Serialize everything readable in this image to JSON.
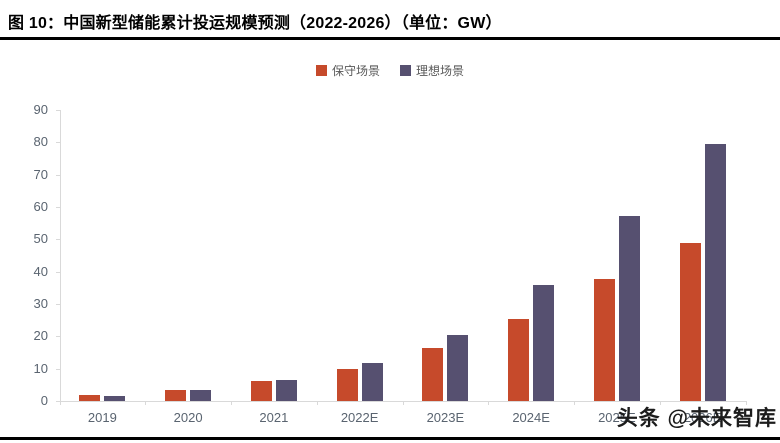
{
  "header": {
    "title": "图 10：中国新型储能累计投运规模预测（2022-2026）（单位：GW）"
  },
  "watermark": {
    "text": "头条 @未来智库"
  },
  "chart_data": {
    "type": "bar",
    "title": "中国新型储能累计投运规模预测（2022-2026）",
    "unit": "GW",
    "categories": [
      "2019",
      "2020",
      "2021",
      "2022E",
      "2023E",
      "2024E",
      "2025E",
      "2026E"
    ],
    "series": [
      {
        "name": "保守场景",
        "color": "#C64A2B",
        "values": [
          1.8,
          3.5,
          6.2,
          9.8,
          16.3,
          25.4,
          37.6,
          48.9
        ]
      },
      {
        "name": "理想场景",
        "color": "#565070",
        "values": [
          1.7,
          3.4,
          6.4,
          11.8,
          20.4,
          36.0,
          57.2,
          79.6
        ]
      }
    ],
    "ylim": [
      0,
      90
    ],
    "yticks": [
      0,
      10,
      20,
      30,
      40,
      50,
      60,
      70,
      80,
      90
    ],
    "grid": false,
    "legend_position": "top-center"
  }
}
